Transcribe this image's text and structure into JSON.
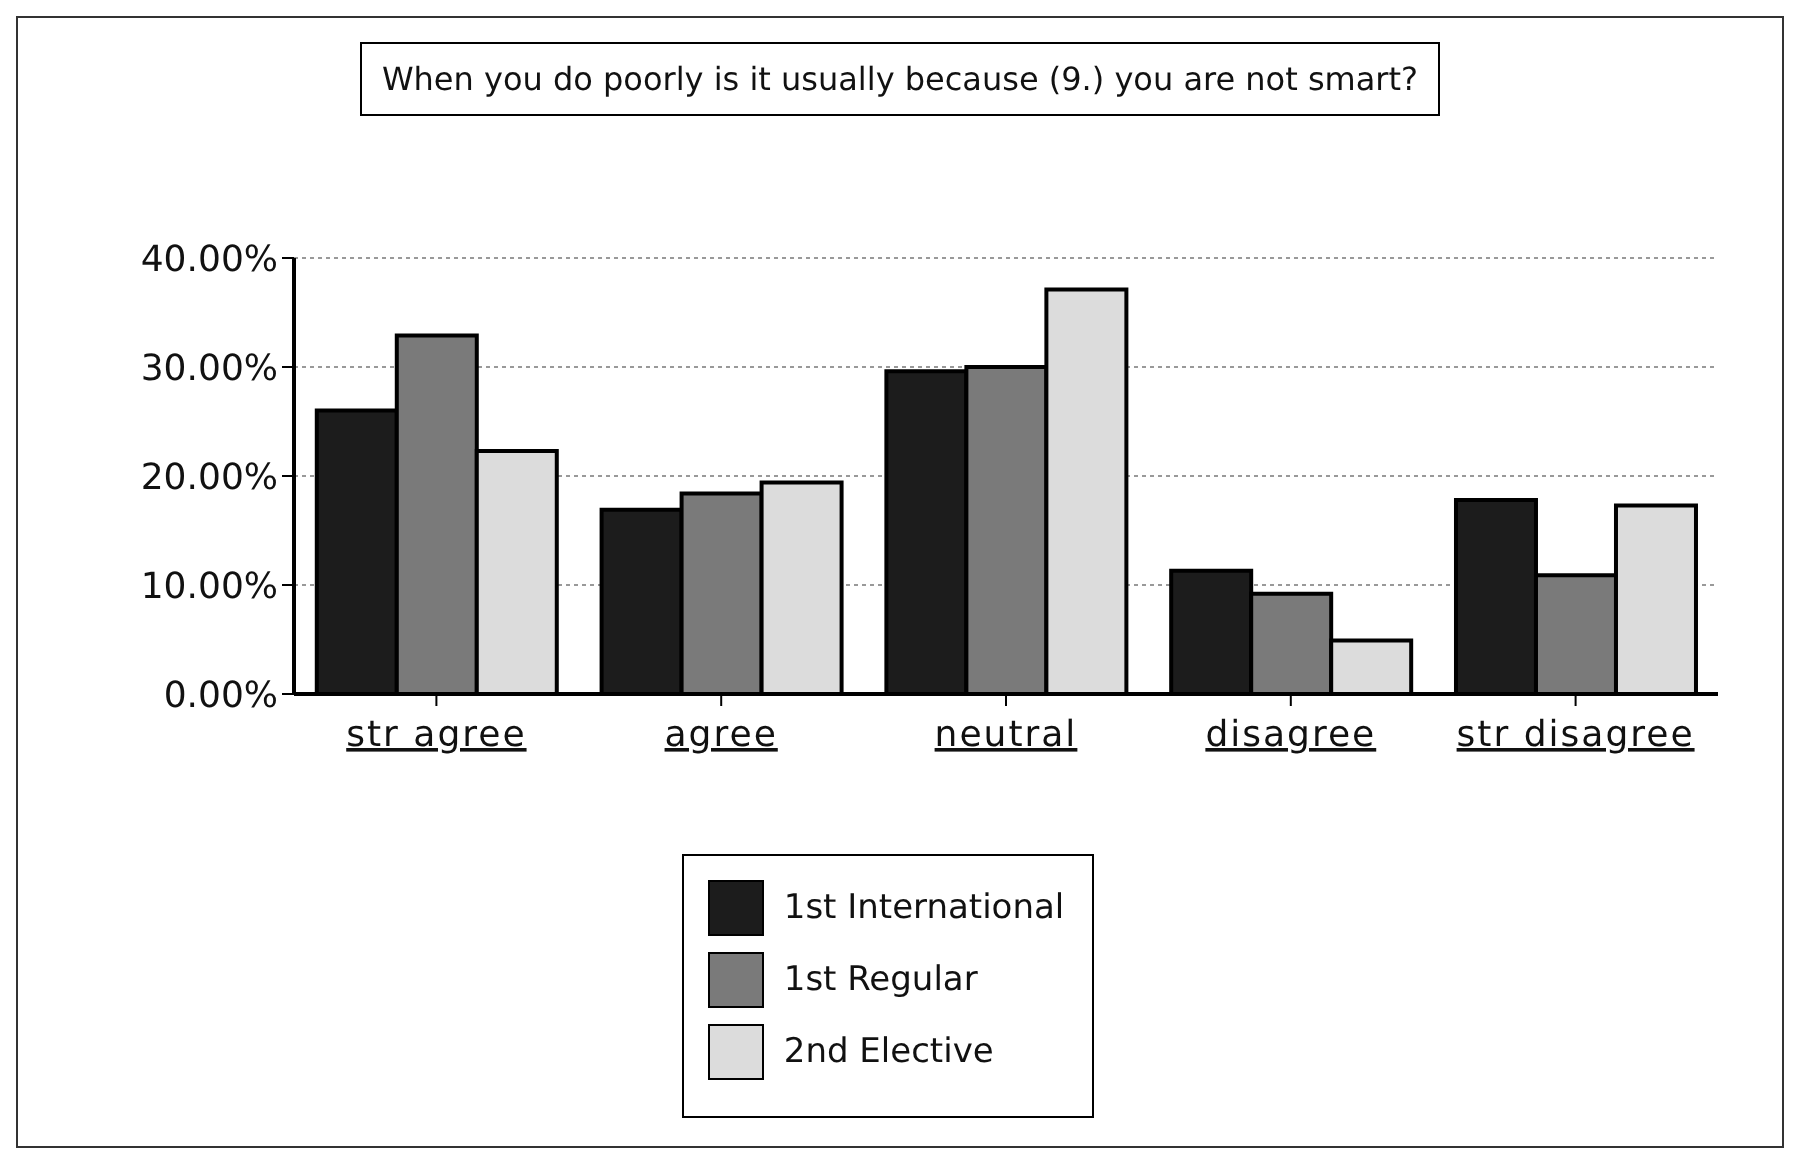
{
  "chart_data": {
    "type": "bar",
    "title": "When you do poorly is it usually because (9.) you are not smart?",
    "categories": [
      "str agree",
      "agree",
      "neutral",
      "disagree",
      "str disagree"
    ],
    "series": [
      {
        "name": "1st International",
        "color": "#1c1c1c",
        "values": [
          26.0,
          16.9,
          29.6,
          11.3,
          17.8
        ]
      },
      {
        "name": "1st Regular",
        "color": "#7a7a7a",
        "values": [
          32.9,
          18.4,
          30.0,
          9.2,
          10.9
        ]
      },
      {
        "name": "2nd Elective",
        "color": "#dcdcdc",
        "values": [
          22.3,
          19.4,
          37.1,
          4.9,
          17.3
        ]
      }
    ],
    "ylim": [
      0,
      40
    ],
    "yticks": [
      {
        "value": 0,
        "label": "0.00%"
      },
      {
        "value": 10,
        "label": "10.00%"
      },
      {
        "value": 20,
        "label": "20.00%"
      },
      {
        "value": 30,
        "label": "30.00%"
      },
      {
        "value": 40,
        "label": "40.00%"
      }
    ],
    "grid": "y",
    "legend": "bottom"
  }
}
